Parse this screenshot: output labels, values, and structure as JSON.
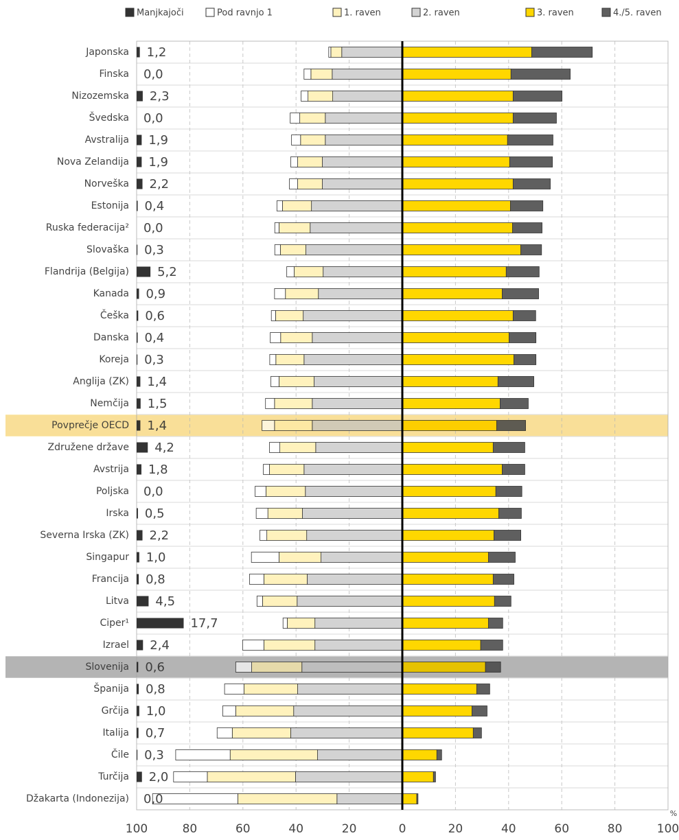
{
  "chart_data": {
    "type": "diverging_bar",
    "x_unit": "%",
    "categories": [
      "Japonska",
      "Finska",
      "Nizozemska",
      "Švedska",
      "Avstralija",
      "Nova Zelandija",
      "Norveška",
      "Estonija",
      "Ruska federacija²",
      "Slovaška",
      "Flandrija (Belgija)",
      "Kanada",
      "Češka",
      "Danska",
      "Koreja",
      "Anglija (ZK)",
      "Nemčija",
      "Povprečje OECD",
      "Združene države",
      "Avstrija",
      "Poljska",
      "Irska",
      "Severna Irska (ZK)",
      "Singapur",
      "Francija",
      "Litva",
      "Ciper¹",
      "Izrael",
      "Slovenija",
      "Španija",
      "Grčija",
      "Italija",
      "Čile",
      "Turčija",
      "Džakarta (Indonezija)"
    ],
    "series": [
      {
        "name": "Manjkajoči",
        "color": "#333333",
        "side": "missing",
        "values": [
          1.2,
          0.0,
          2.3,
          0.0,
          1.9,
          1.9,
          2.2,
          0.4,
          0.0,
          0.3,
          5.2,
          0.9,
          0.6,
          0.4,
          0.3,
          1.4,
          1.5,
          1.4,
          4.2,
          1.8,
          0.0,
          0.5,
          2.2,
          1.0,
          0.8,
          4.5,
          17.7,
          2.4,
          0.6,
          0.8,
          1.0,
          0.7,
          0.3,
          2.0,
          0.0
        ],
        "value_labels": [
          "1,2",
          "0,0",
          "2,3",
          "0,0",
          "1,9",
          "1,9",
          "2,2",
          "0,4",
          "0,0",
          "0,3",
          "5,2",
          "0,9",
          "0,6",
          "0,4",
          "0,3",
          "1,4",
          "1,5",
          "1,4",
          "4,2",
          "1,8",
          "0,0",
          "0,5",
          "2,2",
          "1,0",
          "0,8",
          "4,5",
          "17,7",
          "2,4",
          "0,6",
          "0,8",
          "1,0",
          "0,7",
          "0,3",
          "2,0",
          "0,0"
        ]
      },
      {
        "name": "Pod ravnjo 1",
        "color": "#ffffff",
        "side": "left",
        "values": [
          0.8,
          2.6,
          2.6,
          3.6,
          3.4,
          2.6,
          3.1,
          2.1,
          1.6,
          2.1,
          2.8,
          4.1,
          1.6,
          3.9,
          2.3,
          3.1,
          3.4,
          4.7,
          3.9,
          2.3,
          4.1,
          4.4,
          2.6,
          10.4,
          5.4,
          2.1,
          1.6,
          8.0,
          6.0,
          7.3,
          4.9,
          5.7,
          20.5,
          12.7,
          32.1
        ]
      },
      {
        "name": "1. raven",
        "color": "#fff2bd",
        "side": "left",
        "values": [
          4.1,
          8.0,
          9.3,
          9.6,
          9.3,
          9.3,
          9.3,
          10.9,
          11.7,
          9.6,
          10.9,
          12.4,
          10.4,
          11.9,
          10.6,
          13.2,
          14.2,
          14.2,
          13.5,
          13.0,
          14.8,
          13.0,
          15.0,
          15.8,
          16.3,
          13.0,
          10.4,
          19.2,
          18.9,
          20.2,
          21.8,
          22.0,
          32.9,
          33.2,
          37.3
        ]
      },
      {
        "name": "2. raven",
        "color": "#d3d3d3",
        "side": "left",
        "values": [
          22.8,
          26.4,
          26.2,
          29.0,
          29.0,
          30.1,
          30.1,
          34.2,
          34.7,
          36.3,
          29.8,
          31.6,
          37.3,
          33.9,
          37.0,
          33.2,
          33.9,
          33.9,
          32.6,
          37.0,
          36.5,
          37.6,
          36.0,
          30.6,
          35.8,
          39.6,
          32.9,
          32.9,
          37.8,
          39.4,
          40.9,
          42.0,
          31.9,
          40.2,
          24.6
        ]
      },
      {
        "name": "3. raven",
        "color": "#ffd700",
        "side": "right",
        "values": [
          48.7,
          40.9,
          41.7,
          41.7,
          39.6,
          40.4,
          41.7,
          40.7,
          41.5,
          44.6,
          39.1,
          37.6,
          41.7,
          40.2,
          42.0,
          36.0,
          36.8,
          35.5,
          34.2,
          37.6,
          35.2,
          36.3,
          34.5,
          32.4,
          34.2,
          34.7,
          32.4,
          29.5,
          31.3,
          28.0,
          26.2,
          26.7,
          13.0,
          11.7,
          5.4
        ]
      },
      {
        "name": "4./5. raven",
        "color": "#5f5f5f",
        "side": "right",
        "values": [
          22.8,
          22.3,
          18.4,
          16.3,
          17.1,
          16.1,
          14.0,
          12.2,
          11.1,
          7.8,
          12.4,
          13.7,
          8.5,
          10.1,
          8.3,
          13.5,
          10.6,
          10.9,
          11.9,
          8.5,
          9.8,
          8.5,
          10.1,
          10.1,
          7.8,
          6.2,
          5.4,
          8.3,
          5.7,
          4.9,
          5.7,
          3.1,
          1.8,
          0.8,
          0.5
        ]
      }
    ],
    "highlight_rows": [
      {
        "index": 17,
        "color": "#fbe9b0"
      },
      {
        "index": 28,
        "color": "#c8c8c8"
      }
    ],
    "xlim": [
      -100,
      100
    ],
    "xticks": [
      {
        "value": -100,
        "label": "100"
      },
      {
        "value": -80,
        "label": "80"
      },
      {
        "value": -60,
        "label": "60"
      },
      {
        "value": -40,
        "label": "40"
      },
      {
        "value": -20,
        "label": "20"
      },
      0,
      20,
      40,
      60,
      80,
      100
    ],
    "grid": true
  }
}
